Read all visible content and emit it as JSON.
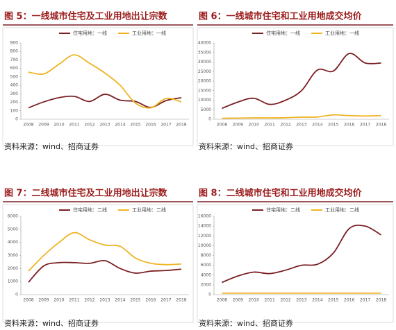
{
  "chart_data": [
    {
      "type": "line",
      "title": "图 5：一线城市住宅及工业用地出让宗数",
      "categories": [
        "2008",
        "2009",
        "2010",
        "2011",
        "2012",
        "2013",
        "2014",
        "2015",
        "2016",
        "2017",
        "2018"
      ],
      "series": [
        {
          "name": "住宅用地：一线",
          "color": "#7b1f22",
          "values": [
            135,
            205,
            255,
            270,
            210,
            295,
            225,
            210,
            140,
            220,
            255
          ]
        },
        {
          "name": "工业用地：一线",
          "color": "#f0b323",
          "values": [
            555,
            535,
            650,
            760,
            660,
            545,
            400,
            190,
            135,
            245,
            205
          ]
        }
      ],
      "ylim": [
        0,
        900
      ],
      "yticks": [
        0,
        100,
        200,
        300,
        400,
        500,
        600,
        700,
        800,
        900
      ],
      "source": "资料来源：wind、招商证券"
    },
    {
      "type": "line",
      "title": "图 6：一线城市住宅和工业用地成交均价",
      "categories": [
        "2008",
        "2009",
        "2010",
        "2011",
        "2012",
        "2013",
        "2014",
        "2015",
        "2016",
        "2017",
        "2018"
      ],
      "series": [
        {
          "name": "住宅用地：一线",
          "color": "#7b1f22",
          "values": [
            5700,
            9000,
            11000,
            7800,
            10000,
            15000,
            25800,
            25300,
            34500,
            29500,
            29500
          ]
        },
        {
          "name": "工业用地：一线",
          "color": "#f0b323",
          "values": [
            500,
            600,
            700,
            700,
            800,
            1100,
            1200,
            2300,
            1900,
            1700,
            1900
          ]
        }
      ],
      "ylim": [
        0,
        40000
      ],
      "yticks": [
        0,
        5000,
        10000,
        15000,
        20000,
        25000,
        30000,
        35000,
        40000
      ],
      "source": "资料来源：wind、招商证券"
    },
    {
      "type": "line",
      "title": "图 7：二线城市住宅及工业用地出让宗数",
      "categories": [
        "2008",
        "2009",
        "2010",
        "2011",
        "2012",
        "2013",
        "2014",
        "2015",
        "2016",
        "2017",
        "2018"
      ],
      "series": [
        {
          "name": "住宅用地：二线",
          "color": "#7b1f22",
          "values": [
            950,
            2200,
            2450,
            2450,
            2400,
            2600,
            2000,
            1650,
            1800,
            1850,
            1950
          ]
        },
        {
          "name": "工业用地：二线",
          "color": "#f0b323",
          "values": [
            1800,
            3000,
            4000,
            4750,
            4200,
            3800,
            3700,
            2800,
            2400,
            2300,
            2350
          ]
        }
      ],
      "ylim": [
        0,
        6000
      ],
      "yticks": [
        0,
        1000,
        2000,
        3000,
        4000,
        5000,
        6000
      ],
      "source": "资料来源：wind、招商证券"
    },
    {
      "type": "line",
      "title": "图 8：二线城市住宅和工业用地成交均价",
      "categories": [
        "2008",
        "2009",
        "2010",
        "2011",
        "2012",
        "2013",
        "2014",
        "2015",
        "2016",
        "2017",
        "2018"
      ],
      "series": [
        {
          "name": "住宅用地：二线",
          "color": "#7b1f22",
          "values": [
            2500,
            3800,
            4600,
            4300,
            5000,
            6000,
            6200,
            8500,
            13500,
            14000,
            12200
          ]
        },
        {
          "name": "工业用地：二线",
          "color": "#f0b323",
          "values": [
            300,
            300,
            300,
            300,
            300,
            300,
            300,
            300,
            300,
            300,
            300
          ]
        }
      ],
      "ylim": [
        0,
        16000
      ],
      "yticks": [
        0,
        2000,
        4000,
        6000,
        8000,
        10000,
        12000,
        14000,
        16000
      ],
      "source": "资料来源：wind、招商证券"
    }
  ]
}
